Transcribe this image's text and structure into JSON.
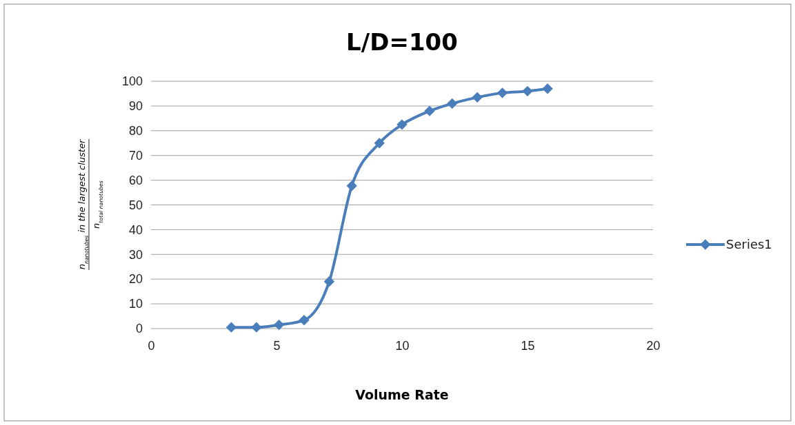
{
  "chart_data": {
    "type": "line",
    "title": "L/D=100",
    "xlabel": "Volume Rate",
    "ylabel": "n$_{nanotubes}$ in the largest cluster\nn$_{total nanotubes}$",
    "x": [
      3.2,
      4.2,
      5.1,
      6.1,
      7.1,
      8.0,
      9.1,
      10.0,
      11.1,
      12.0,
      13.0,
      14.0,
      15.0,
      15.8
    ],
    "series": [
      {
        "name": "Series1",
        "color": "#4a7ebb",
        "values": [
          0.5,
          0.5,
          1.5,
          3.4,
          19,
          57.7,
          75,
          82.5,
          88,
          91,
          93.5,
          95.3,
          96,
          97
        ]
      }
    ],
    "xlim": [
      0,
      20
    ],
    "xticks": [
      0,
      5,
      10,
      15,
      20
    ],
    "ylim": [
      0,
      100
    ],
    "yticks": [
      0,
      10,
      20,
      30,
      40,
      50,
      60,
      70,
      80,
      90,
      100
    ],
    "grid": "y",
    "legend": "right",
    "marker": "diamond",
    "line_style": "solid"
  }
}
